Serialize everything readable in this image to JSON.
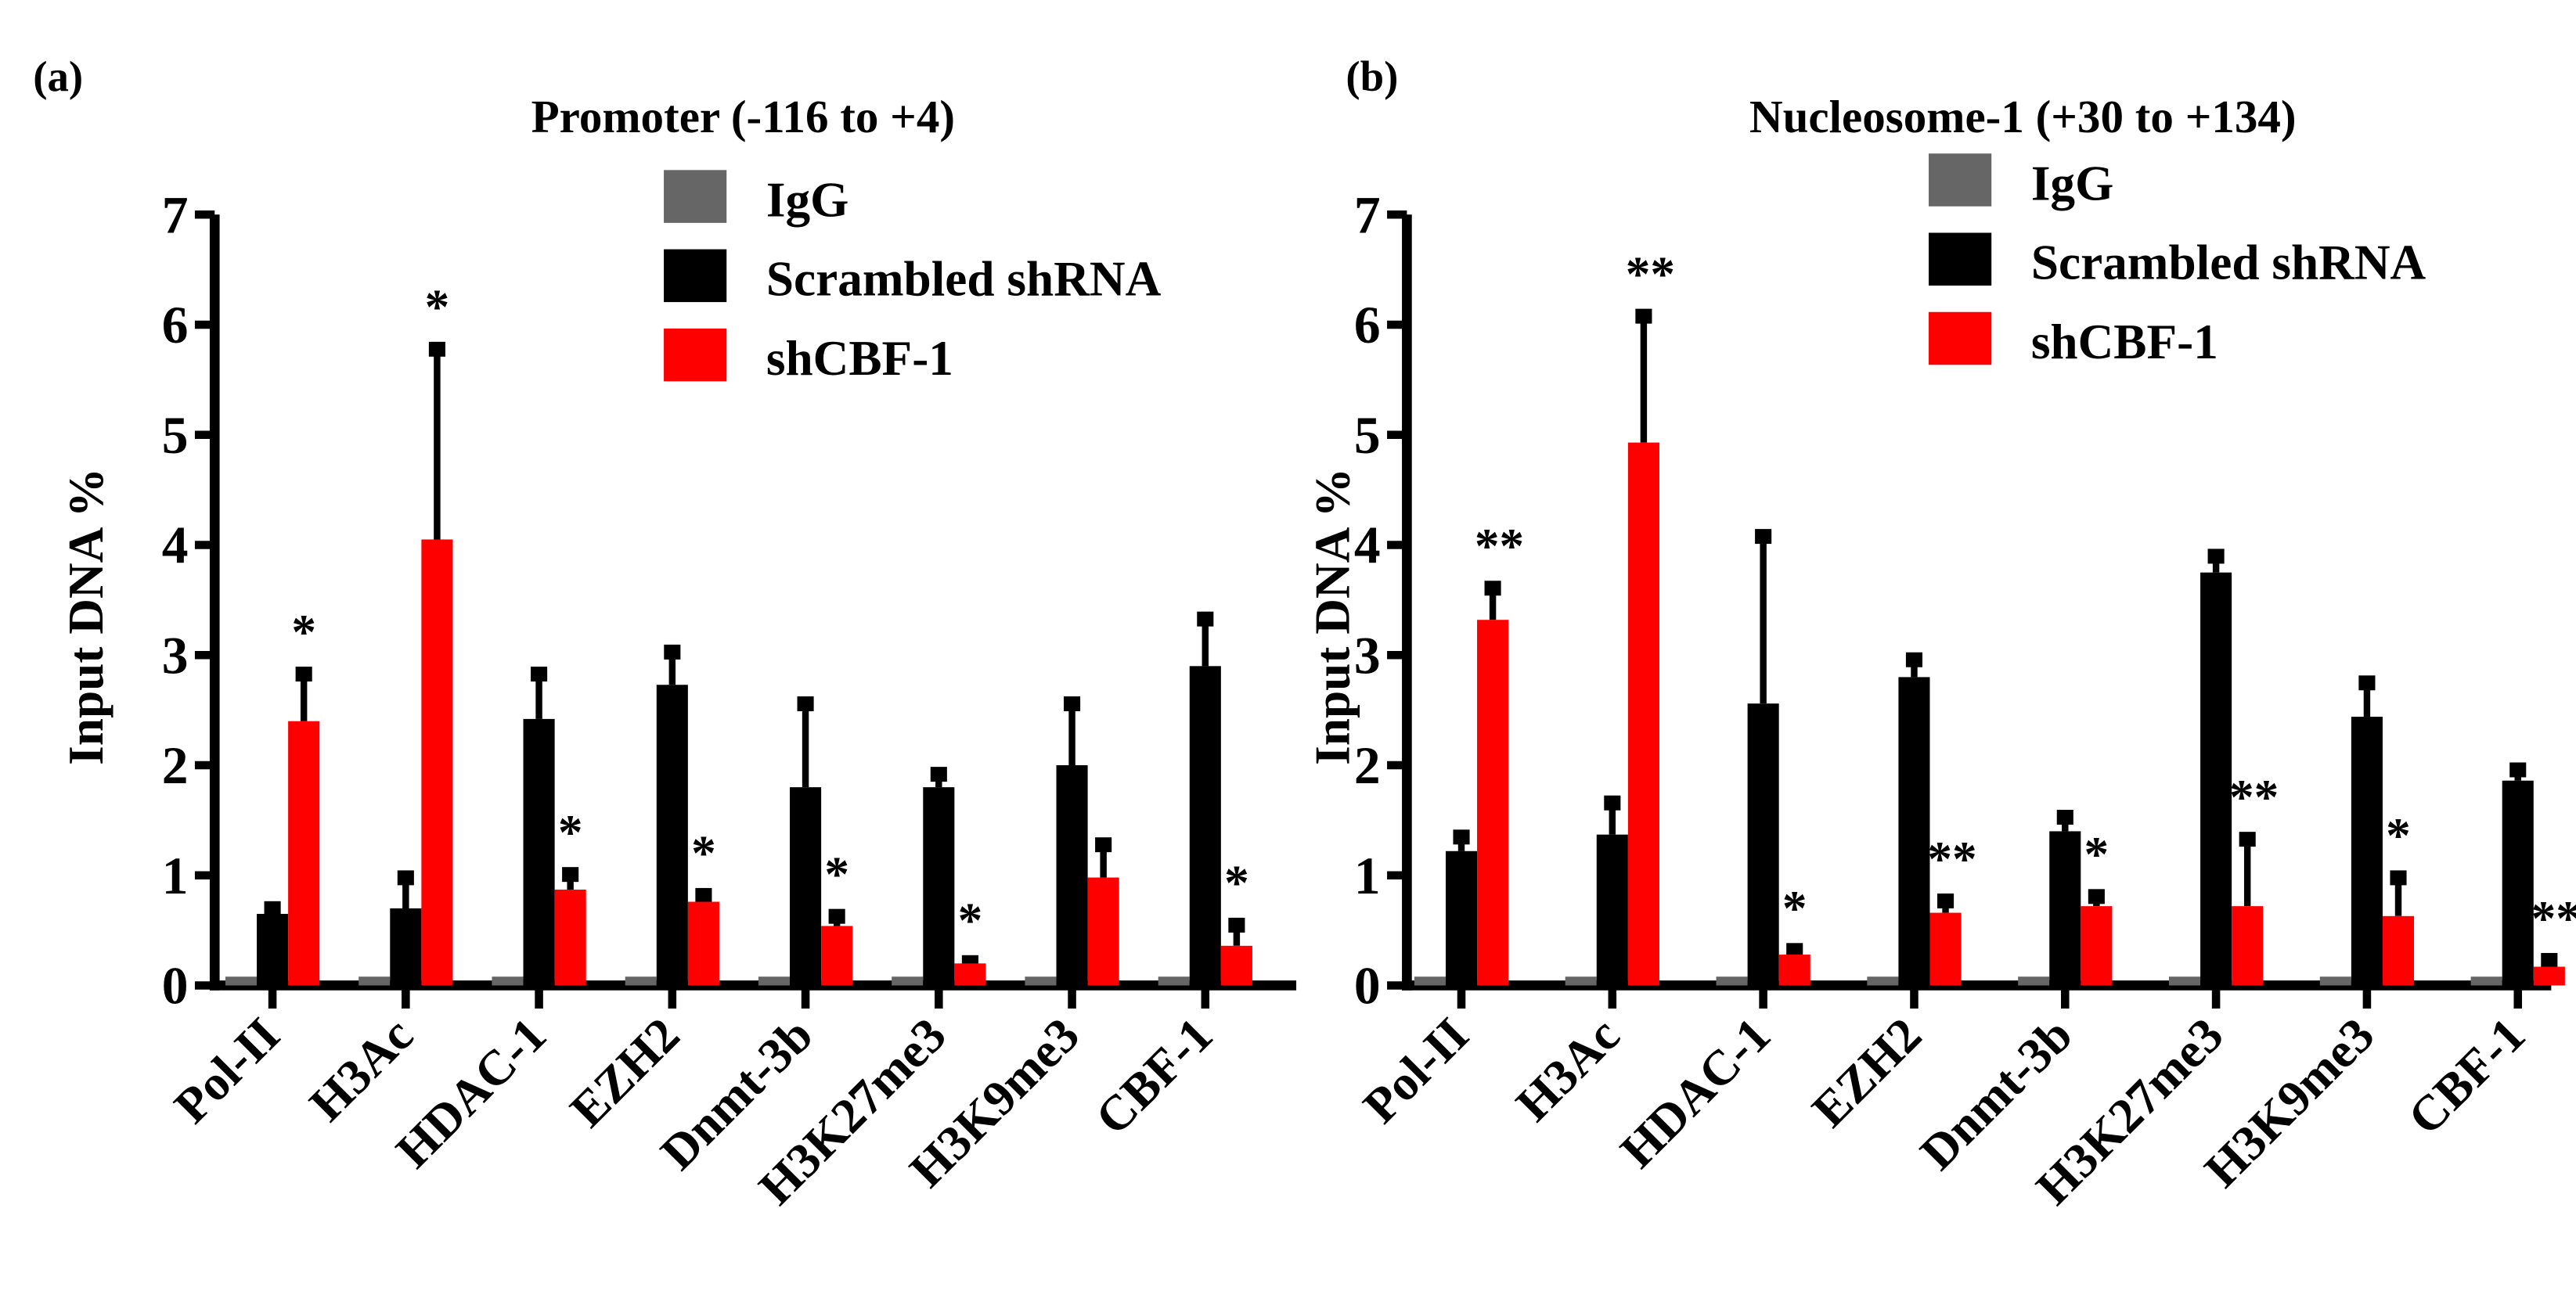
{
  "colors": {
    "IgG": "#666666",
    "Scrambled shRNA": "#000000",
    "shCBF-1": "#ff0000"
  },
  "chart_data": [
    {
      "type": "bar",
      "panel_label": "(a)",
      "title": "Promoter (-116 to +4)",
      "ylabel": "Input DNA %",
      "xlabel": "",
      "ylim": [
        0,
        7
      ],
      "yticks": [
        "0",
        "1",
        "2",
        "3",
        "4",
        "5",
        "6",
        "7"
      ],
      "categories": [
        "Pol-II",
        "H3Ac",
        "HDAC-1",
        "EZH2",
        "Dnmt-3b",
        "H3K27me3",
        "H3K9me3",
        "CBF-1"
      ],
      "legend": [
        "IgG",
        "Scrambled shRNA",
        "shCBF-1"
      ],
      "legend_position": "top-right",
      "series": [
        {
          "name": "IgG",
          "values": [
            0.08,
            0.08,
            0.08,
            0.08,
            0.08,
            0.08,
            0.08,
            0.08
          ],
          "error_upper": [
            0.08,
            0.08,
            0.08,
            0.08,
            0.08,
            0.08,
            0.08,
            0.08
          ]
        },
        {
          "name": "Scrambled shRNA",
          "values": [
            0.65,
            0.7,
            2.42,
            2.73,
            1.8,
            1.8,
            2.0,
            2.9
          ],
          "error_upper": [
            0.72,
            1.0,
            2.85,
            3.05,
            2.58,
            1.94,
            2.58,
            3.35
          ]
        },
        {
          "name": "shCBF-1",
          "values": [
            2.4,
            4.05,
            0.87,
            0.76,
            0.54,
            0.2,
            0.98,
            0.36
          ],
          "error_upper": [
            2.85,
            5.8,
            1.03,
            0.84,
            0.65,
            0.23,
            1.3,
            0.57
          ]
        }
      ],
      "significance": [
        "*",
        "*",
        "*",
        "*",
        "*",
        "*",
        "",
        "*"
      ]
    },
    {
      "type": "bar",
      "panel_label": "(b)",
      "title": "Nucleosome-1 (+30 to +134)",
      "ylabel": "Input DNA %",
      "xlabel": "",
      "ylim": [
        0,
        7
      ],
      "yticks": [
        "0",
        "1",
        "2",
        "3",
        "4",
        "5",
        "6",
        "7"
      ],
      "categories": [
        "Pol-II",
        "H3Ac",
        "HDAC-1",
        "EZH2",
        "Dnmt-3b",
        "H3K27me3",
        "H3K9me3",
        "CBF-1"
      ],
      "legend": [
        "IgG",
        "Scrambled shRNA",
        "shCBF-1"
      ],
      "legend_position": "top-right",
      "series": [
        {
          "name": "IgG",
          "values": [
            0.08,
            0.08,
            0.08,
            0.08,
            0.08,
            0.08,
            0.08,
            0.08
          ],
          "error_upper": [
            0.08,
            0.08,
            0.08,
            0.08,
            0.08,
            0.08,
            0.08,
            0.08
          ]
        },
        {
          "name": "Scrambled shRNA",
          "values": [
            1.22,
            1.37,
            2.56,
            2.8,
            1.4,
            3.75,
            2.44,
            1.86
          ],
          "error_upper": [
            1.37,
            1.68,
            4.1,
            2.98,
            1.55,
            3.92,
            2.77,
            1.98
          ]
        },
        {
          "name": "shCBF-1",
          "values": [
            3.32,
            4.93,
            0.28,
            0.66,
            0.72,
            0.72,
            0.63,
            0.17
          ],
          "error_upper": [
            3.63,
            6.1,
            0.34,
            0.79,
            0.83,
            1.35,
            1.0,
            0.25
          ]
        }
      ],
      "significance": [
        "**",
        "**",
        "*",
        "**",
        "*",
        "**",
        "*",
        "**"
      ]
    }
  ]
}
